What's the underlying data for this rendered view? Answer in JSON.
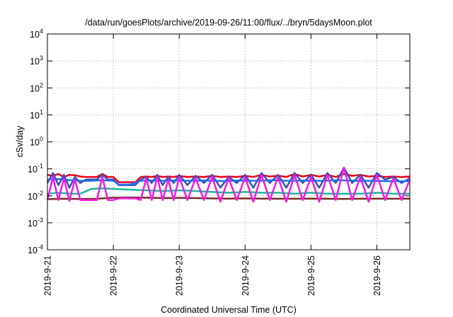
{
  "chart_data": {
    "type": "line",
    "title": "/data/run/goesPlots/archive/2019-09-26/11:00/flux/../bryn/5daysMoon.plot",
    "xlabel": "Coordinated Universal Time (UTC)",
    "ylabel": "cSv/day",
    "y_scale": "log",
    "ylim": [
      0.0001,
      10000
    ],
    "y_ticks": [
      {
        "base": "10",
        "exp": "4",
        "value": 10000
      },
      {
        "base": "10",
        "exp": "3",
        "value": 1000
      },
      {
        "base": "10",
        "exp": "2",
        "value": 100
      },
      {
        "base": "10",
        "exp": "1",
        "value": 10
      },
      {
        "base": "10",
        "exp": "0",
        "value": 1
      },
      {
        "base": "10",
        "exp": "-1",
        "value": 0.1
      },
      {
        "base": "10",
        "exp": "-2",
        "value": 0.01
      },
      {
        "base": "10",
        "exp": "-3",
        "value": 0.001
      },
      {
        "base": "10",
        "exp": "-4",
        "value": 0.0001
      }
    ],
    "xlim": [
      "2019-09-21T00:00",
      "2019-09-26T12:00"
    ],
    "x_ticks": [
      {
        "label": "2019-9-21",
        "date": "2019-09-21T00:00"
      },
      {
        "label": "2019-9-22",
        "date": "2019-09-22T00:00"
      },
      {
        "label": "2019-9-23",
        "date": "2019-09-23T00:00"
      },
      {
        "label": "2019-9-24",
        "date": "2019-09-24T00:00"
      },
      {
        "label": "2019-9-25",
        "date": "2019-09-25T00:00"
      },
      {
        "label": "2019-9-26",
        "date": "2019-09-26T00:00"
      }
    ],
    "grid": true,
    "series": [
      {
        "color": "#e8001c",
        "x": [
          "2019-09-21T00:00",
          "2019-09-21T02:00",
          "2019-09-21T04:00",
          "2019-09-21T06:00",
          "2019-09-21T08:00",
          "2019-09-21T10:00",
          "2019-09-21T12:00",
          "2019-09-21T14:00",
          "2019-09-21T16:00",
          "2019-09-21T18:00",
          "2019-09-21T20:00",
          "2019-09-21T22:00",
          "2019-09-22T00:00",
          "2019-09-22T02:00",
          "2019-09-22T04:00",
          "2019-09-22T06:00",
          "2019-09-22T08:00",
          "2019-09-22T10:00",
          "2019-09-22T12:00",
          "2019-09-22T14:00",
          "2019-09-22T16:00",
          "2019-09-22T18:00",
          "2019-09-22T20:00",
          "2019-09-22T22:00",
          "2019-09-23T00:00",
          "2019-09-23T03:00",
          "2019-09-23T06:00",
          "2019-09-23T09:00",
          "2019-09-23T12:00",
          "2019-09-23T15:00",
          "2019-09-23T18:00",
          "2019-09-23T21:00",
          "2019-09-24T00:00",
          "2019-09-24T03:00",
          "2019-09-24T06:00",
          "2019-09-24T09:00",
          "2019-09-24T12:00",
          "2019-09-24T15:00",
          "2019-09-24T18:00",
          "2019-09-24T21:00",
          "2019-09-25T00:00",
          "2019-09-25T03:00",
          "2019-09-25T06:00",
          "2019-09-25T09:00",
          "2019-09-25T12:00",
          "2019-09-25T15:00",
          "2019-09-25T18:00",
          "2019-09-25T21:00",
          "2019-09-26T00:00",
          "2019-09-26T03:00",
          "2019-09-26T06:00",
          "2019-09-26T09:00",
          "2019-09-26T12:00"
        ],
        "y": [
          0.06,
          0.055,
          0.065,
          0.05,
          0.06,
          0.058,
          0.052,
          0.05,
          0.05,
          0.05,
          0.065,
          0.05,
          0.05,
          0.032,
          0.032,
          0.032,
          0.032,
          0.05,
          0.052,
          0.05,
          0.055,
          0.05,
          0.052,
          0.05,
          0.055,
          0.05,
          0.052,
          0.05,
          0.055,
          0.05,
          0.052,
          0.05,
          0.055,
          0.05,
          0.06,
          0.052,
          0.056,
          0.05,
          0.065,
          0.052,
          0.06,
          0.052,
          0.06,
          0.05,
          0.065,
          0.055,
          0.06,
          0.052,
          0.055,
          0.05,
          0.052,
          0.05,
          0.052
        ]
      },
      {
        "color": "#3a4fb4",
        "x": [
          "2019-09-21T00:00",
          "2019-09-21T02:00",
          "2019-09-21T04:00",
          "2019-09-21T06:00",
          "2019-09-21T08:00",
          "2019-09-21T10:00",
          "2019-09-21T12:00",
          "2019-09-21T14:00",
          "2019-09-21T16:00",
          "2019-09-21T18:00",
          "2019-09-21T20:00",
          "2019-09-21T22:00",
          "2019-09-22T00:00",
          "2019-09-22T02:00",
          "2019-09-22T04:00",
          "2019-09-22T06:00",
          "2019-09-22T08:00",
          "2019-09-22T10:00",
          "2019-09-22T12:00",
          "2019-09-22T14:00",
          "2019-09-22T16:00",
          "2019-09-22T18:00",
          "2019-09-22T20:00",
          "2019-09-22T22:00",
          "2019-09-23T00:00",
          "2019-09-23T03:00",
          "2019-09-23T06:00",
          "2019-09-23T09:00",
          "2019-09-23T12:00",
          "2019-09-23T15:00",
          "2019-09-23T18:00",
          "2019-09-23T21:00",
          "2019-09-24T00:00",
          "2019-09-24T03:00",
          "2019-09-24T06:00",
          "2019-09-24T09:00",
          "2019-09-24T12:00",
          "2019-09-24T15:00",
          "2019-09-24T18:00",
          "2019-09-24T21:00",
          "2019-09-25T00:00",
          "2019-09-25T03:00",
          "2019-09-25T06:00",
          "2019-09-25T09:00",
          "2019-09-25T12:00",
          "2019-09-25T15:00",
          "2019-09-25T18:00",
          "2019-09-25T21:00",
          "2019-09-26T00:00",
          "2019-09-26T03:00",
          "2019-09-26T06:00",
          "2019-09-26T09:00",
          "2019-09-26T12:00"
        ],
        "y": [
          0.03,
          0.07,
          0.025,
          0.06,
          0.02,
          0.05,
          0.03,
          0.04,
          0.04,
          0.04,
          0.06,
          0.04,
          0.04,
          0.025,
          0.025,
          0.025,
          0.025,
          0.04,
          0.05,
          0.03,
          0.06,
          0.025,
          0.05,
          0.03,
          0.06,
          0.025,
          0.055,
          0.03,
          0.06,
          0.02,
          0.05,
          0.03,
          0.06,
          0.02,
          0.07,
          0.03,
          0.06,
          0.02,
          0.07,
          0.03,
          0.06,
          0.02,
          0.07,
          0.03,
          0.11,
          0.03,
          0.06,
          0.02,
          0.07,
          0.04,
          0.05,
          0.03,
          0.045
        ]
      },
      {
        "color": "#1e6fe8",
        "x": [
          "2019-09-21T00:00",
          "2019-09-21T04:00",
          "2019-09-21T08:00",
          "2019-09-21T12:00",
          "2019-09-21T16:00",
          "2019-09-21T20:00",
          "2019-09-22T00:00",
          "2019-09-22T02:00",
          "2019-09-22T06:00",
          "2019-09-22T10:00",
          "2019-09-22T14:00",
          "2019-09-22T18:00",
          "2019-09-22T22:00",
          "2019-09-23T04:00",
          "2019-09-23T10:00",
          "2019-09-23T16:00",
          "2019-09-23T22:00",
          "2019-09-24T04:00",
          "2019-09-24T10:00",
          "2019-09-24T16:00",
          "2019-09-24T22:00",
          "2019-09-25T04:00",
          "2019-09-25T10:00",
          "2019-09-25T16:00",
          "2019-09-25T22:00",
          "2019-09-26T04:00",
          "2019-09-26T12:00"
        ],
        "y": [
          0.04,
          0.042,
          0.038,
          0.036,
          0.036,
          0.038,
          0.036,
          0.026,
          0.026,
          0.036,
          0.037,
          0.036,
          0.037,
          0.036,
          0.037,
          0.035,
          0.037,
          0.036,
          0.038,
          0.036,
          0.037,
          0.036,
          0.038,
          0.036,
          0.036,
          0.035,
          0.035
        ]
      },
      {
        "color": "#19b89a",
        "x": [
          "2019-09-21T00:00",
          "2019-09-21T04:00",
          "2019-09-21T08:00",
          "2019-09-21T12:00",
          "2019-09-21T16:00",
          "2019-09-21T20:00",
          "2019-09-22T00:00",
          "2019-09-22T06:00",
          "2019-09-22T12:00",
          "2019-09-22T18:00",
          "2019-09-23T00:00",
          "2019-09-23T06:00",
          "2019-09-23T12:00",
          "2019-09-23T18:00",
          "2019-09-24T00:00",
          "2019-09-24T06:00",
          "2019-09-24T12:00",
          "2019-09-24T18:00",
          "2019-09-25T00:00",
          "2019-09-25T06:00",
          "2019-09-25T12:00",
          "2019-09-25T18:00",
          "2019-09-26T00:00",
          "2019-09-26T06:00",
          "2019-09-26T12:00"
        ],
        "y": [
          0.012,
          0.013,
          0.012,
          0.012,
          0.018,
          0.019,
          0.018,
          0.017,
          0.016,
          0.015,
          0.016,
          0.015,
          0.014,
          0.013,
          0.014,
          0.013,
          0.013,
          0.012,
          0.013,
          0.012,
          0.012,
          0.012,
          0.013,
          0.012,
          0.012
        ]
      },
      {
        "color": "#7a2a28",
        "x": [
          "2019-09-21T00:00",
          "2019-09-21T06:00",
          "2019-09-21T12:00",
          "2019-09-21T18:00",
          "2019-09-22T00:00",
          "2019-09-22T06:00",
          "2019-09-22T12:00",
          "2019-09-22T18:00",
          "2019-09-23T00:00",
          "2019-09-23T06:00",
          "2019-09-23T12:00",
          "2019-09-23T18:00",
          "2019-09-24T00:00",
          "2019-09-24T06:00",
          "2019-09-24T12:00",
          "2019-09-24T18:00",
          "2019-09-25T00:00",
          "2019-09-25T06:00",
          "2019-09-25T12:00",
          "2019-09-25T18:00",
          "2019-09-26T00:00",
          "2019-09-26T06:00",
          "2019-09-26T12:00"
        ],
        "y": [
          0.0075,
          0.0078,
          0.0076,
          0.0078,
          0.0085,
          0.0087,
          0.0085,
          0.0082,
          0.0084,
          0.0082,
          0.008,
          0.0079,
          0.008,
          0.0079,
          0.0078,
          0.0078,
          0.0079,
          0.0078,
          0.0077,
          0.0078,
          0.0079,
          0.0078,
          0.0079
        ]
      },
      {
        "color": "#f21ae6",
        "x": [
          "2019-09-21T00:00",
          "2019-09-21T02:00",
          "2019-09-21T04:00",
          "2019-09-21T06:00",
          "2019-09-21T08:00",
          "2019-09-21T10:00",
          "2019-09-21T12:00",
          "2019-09-21T14:00",
          "2019-09-21T16:00",
          "2019-09-21T18:00",
          "2019-09-21T20:00",
          "2019-09-21T22:00",
          "2019-09-22T00:00",
          "2019-09-22T02:00",
          "2019-09-22T04:00",
          "2019-09-22T06:00",
          "2019-09-22T08:00",
          "2019-09-22T10:00",
          "2019-09-22T12:00",
          "2019-09-22T14:00",
          "2019-09-22T16:00",
          "2019-09-22T18:00",
          "2019-09-22T20:00",
          "2019-09-22T22:00",
          "2019-09-23T00:00",
          "2019-09-23T03:00",
          "2019-09-23T06:00",
          "2019-09-23T09:00",
          "2019-09-23T12:00",
          "2019-09-23T15:00",
          "2019-09-23T18:00",
          "2019-09-23T21:00",
          "2019-09-24T00:00",
          "2019-09-24T03:00",
          "2019-09-24T06:00",
          "2019-09-24T09:00",
          "2019-09-24T12:00",
          "2019-09-24T15:00",
          "2019-09-24T18:00",
          "2019-09-24T21:00",
          "2019-09-25T00:00",
          "2019-09-25T03:00",
          "2019-09-25T06:00",
          "2019-09-25T09:00",
          "2019-09-25T12:00",
          "2019-09-25T15:00",
          "2019-09-25T18:00",
          "2019-09-25T21:00",
          "2019-09-26T00:00",
          "2019-09-26T03:00",
          "2019-09-26T06:00",
          "2019-09-26T09:00",
          "2019-09-26T12:00"
        ],
        "y": [
          0.007,
          0.05,
          0.007,
          0.045,
          0.0065,
          0.04,
          0.007,
          0.007,
          0.007,
          0.007,
          0.05,
          0.007,
          0.007,
          0.008,
          0.008,
          0.008,
          0.008,
          0.007,
          0.045,
          0.007,
          0.05,
          0.007,
          0.04,
          0.007,
          0.05,
          0.007,
          0.045,
          0.007,
          0.05,
          0.006,
          0.045,
          0.007,
          0.05,
          0.006,
          0.06,
          0.007,
          0.05,
          0.006,
          0.06,
          0.007,
          0.05,
          0.006,
          0.06,
          0.007,
          0.11,
          0.007,
          0.05,
          0.006,
          0.06,
          0.007,
          0.045,
          0.007,
          0.04
        ]
      }
    ]
  }
}
